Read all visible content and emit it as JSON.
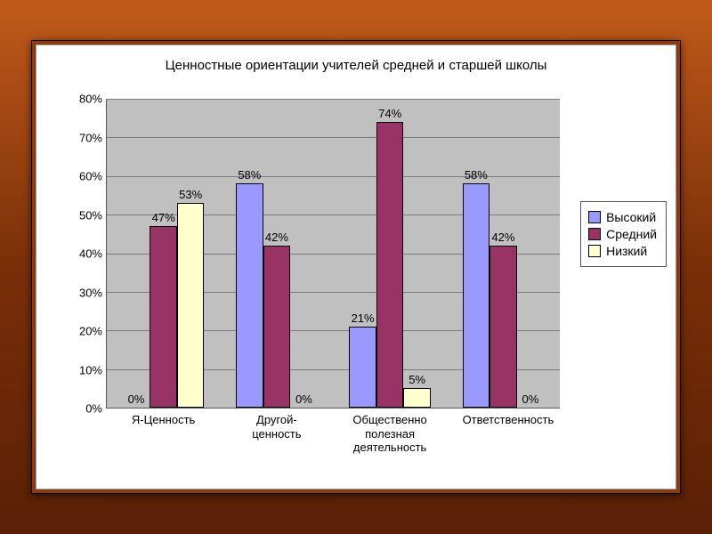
{
  "chart": {
    "title": "Ценностные ориентации учителей  средней и старшей школы",
    "title_fontsize": 15,
    "type": "bar",
    "background_color": "#c0c0c0",
    "panel_color": "#ffffff",
    "grid_color": "#7a7a7a",
    "ylim": [
      0,
      80
    ],
    "ytick_step": 10,
    "ytick_suffix": "%",
    "axis_fontsize": 13,
    "categories": [
      "Я-Ценность",
      "Другой-ценность",
      "Общественно полезная деятельность",
      "Ответственность"
    ],
    "series": [
      {
        "name": "Высокий",
        "color": "#9999ff"
      },
      {
        "name": "Средний",
        "color": "#993366"
      },
      {
        "name": "Низкий",
        "color": "#ffffcc"
      }
    ],
    "values": [
      [
        0,
        47,
        53
      ],
      [
        58,
        42,
        0
      ],
      [
        21,
        74,
        5
      ],
      [
        58,
        42,
        0
      ]
    ],
    "bar_width_pct": 6.0,
    "group_gap_pct": 7.0,
    "data_label_fontsize": 13,
    "legend_fontsize": 14,
    "xlabel_fontsize": 13
  },
  "frame": {
    "outer_gradient_top": "#c05a1a",
    "outer_gradient_mid": "#7a2f08",
    "outer_gradient_bottom": "#5a2006",
    "mid_color": "#8b3a12"
  }
}
